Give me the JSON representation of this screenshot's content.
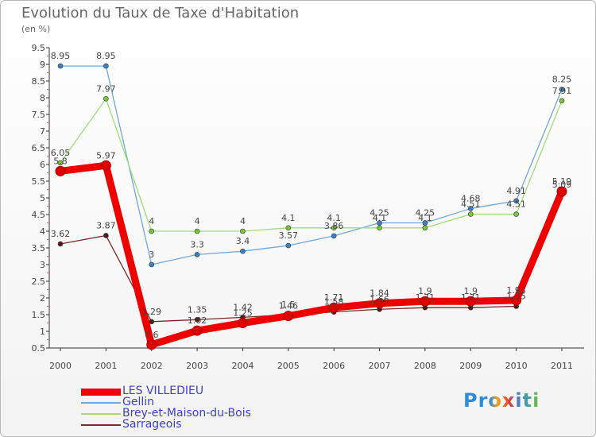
{
  "header": {
    "title": "Evolution du Taux de Taxe d'Habitation",
    "subtitle": "(en %)"
  },
  "brand": "Proxiti",
  "chart_data": {
    "type": "line",
    "title": "Evolution du Taux de Taxe d'Habitation",
    "subtitle": "(en %)",
    "xlabel": "",
    "ylabel": "",
    "categories": [
      "2000",
      "2001",
      "2002",
      "2003",
      "2004",
      "2005",
      "2006",
      "2007",
      "2008",
      "2009",
      "2010",
      "2011"
    ],
    "ylim": [
      0.5,
      9.5
    ],
    "yticks": [
      "0.5",
      "1",
      "1.5",
      "2",
      "2.5",
      "3",
      "3.5",
      "4",
      "4.5",
      "5",
      "5.5",
      "6",
      "6.5",
      "7",
      "7.5",
      "8",
      "8.5",
      "9",
      "9.5"
    ],
    "grid": false,
    "legend_position": "bottom-left",
    "series": [
      {
        "name": "Gellin",
        "color": "#6fa8d8",
        "marker": "#3b82c4",
        "values": [
          8.95,
          8.95,
          3,
          3.3,
          3.4,
          3.57,
          3.86,
          4.25,
          4.25,
          4.68,
          4.91,
          8.25
        ],
        "labels": [
          "8.95",
          "8.95",
          "3",
          "3.3",
          "3.4",
          "3.57",
          "3.86",
          "4.25",
          "4.25",
          "4.68",
          "4.91",
          "8.25"
        ]
      },
      {
        "name": "Brey-et-Maison-du-Bois",
        "color": "#9fdc78",
        "marker": "#7cc63a",
        "values": [
          6.05,
          7.97,
          4,
          4,
          4,
          4.1,
          4.1,
          4.1,
          4.1,
          4.51,
          4.51,
          7.91
        ],
        "labels": [
          "6.05",
          "7.97",
          "4",
          "4",
          "4",
          "4.1",
          "4.1",
          "4.1",
          "4.1",
          "4.51",
          "4.51",
          "7.91"
        ]
      },
      {
        "name": "Sarrageois",
        "color": "#7a2a2a",
        "marker": "#5a1818",
        "values": [
          3.62,
          3.87,
          1.29,
          1.35,
          1.42,
          1.5,
          1.58,
          1.66,
          1.71,
          1.71,
          1.75,
          5.09
        ],
        "labels": [
          "3.62",
          "3.87",
          "1.29",
          "1.35",
          "1.42",
          "1.5",
          "1.58",
          "1.66",
          "1.71",
          "1.71",
          "1.75",
          "5.09"
        ]
      },
      {
        "name": "LES VILLEDIEU",
        "color": "#ee0000",
        "marker": "#dd0000",
        "values": [
          5.8,
          5.97,
          0.6,
          1.02,
          1.25,
          1.46,
          1.71,
          1.84,
          1.9,
          1.9,
          1.93,
          5.19
        ],
        "labels": [
          "5.8",
          "5.97",
          "0.6",
          "1.02",
          "1.25",
          "1.46",
          "1.71",
          "1.84",
          "1.9",
          "1.9",
          "1.93",
          "5.19"
        ]
      }
    ]
  }
}
